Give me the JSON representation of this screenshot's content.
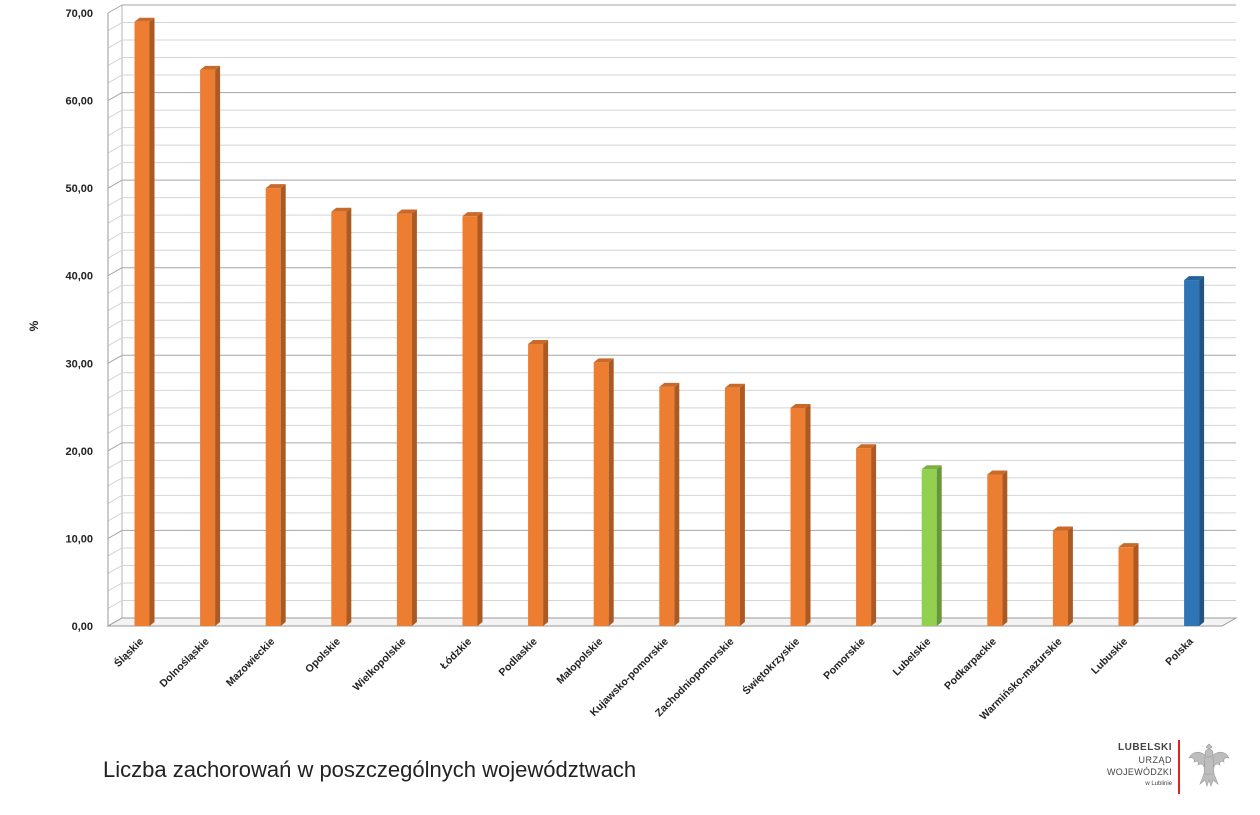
{
  "chart_data": {
    "type": "bar",
    "title": "",
    "xlabel": "",
    "ylabel": "%",
    "ylim": [
      0,
      70
    ],
    "yticks": [
      "0,00",
      "10,00",
      "20,00",
      "30,00",
      "40,00",
      "50,00",
      "60,00",
      "70,00"
    ],
    "grid": true,
    "categories": [
      "Śląskie",
      "Dolnośląskie",
      "Mazowieckie",
      "Opolskie",
      "Wielkopolskie",
      "Łódzkie",
      "Podlaskie",
      "Małopolskie",
      "Kujawsko-pomorskie",
      "Zachodniopomorskie",
      "Świętokrzyskie",
      "Pomorskie",
      "Lubelskie",
      "Podkarpackie",
      "Warmińsko-mazurskie",
      "Lubuskie",
      "Polska"
    ],
    "values": [
      69.0,
      63.5,
      50.0,
      47.3,
      47.1,
      46.8,
      32.2,
      30.1,
      27.3,
      27.2,
      24.9,
      20.3,
      17.9,
      17.3,
      10.9,
      9.0,
      39.5
    ],
    "colors": {
      "default": "#ED7D31",
      "highlight": "#92D050",
      "total": "#2E75B6"
    },
    "highlight_index": 12,
    "total_index": 16
  },
  "caption": "Liczba zachorowań w poszczególnych województwach",
  "logo": {
    "line1": "LUBELSKI",
    "line2": "URZĄD",
    "line3": "WOJEWÓDZKI",
    "line4": "w Lublinie",
    "emblem": "eagle-emblem-icon"
  }
}
